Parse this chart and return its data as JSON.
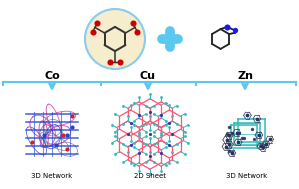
{
  "bg_color": "#ffffff",
  "arrow_color": "#5BC8F0",
  "box_color": "#5BC8F0",
  "circle_fill": "#F5EDCC",
  "circle_edge": "#88CCEE",
  "btc_color": "#333333",
  "btc_o_color": "#cc0000",
  "bim_color": "#222222",
  "bim_n_color": "#1a1aee",
  "plus_color": "#5BC8F0",
  "labels": [
    "Co",
    "Cu",
    "Zn"
  ],
  "sub_labels": [
    "3D Network",
    "2D Sheet",
    "3D Network"
  ],
  "label_fontsize": 8,
  "sub_label_fontsize": 5.0,
  "co_pink": "#cc44aa",
  "co_blue": "#2244cc",
  "co_grey": "#666688",
  "co_red": "#cc2222",
  "cu_pink": "#ff5577",
  "cu_cyan": "#33bbbb",
  "cu_blue": "#2244aa",
  "zn_cyan": "#33bbbb",
  "zn_blue": "#223366",
  "zn_grey": "#444455"
}
